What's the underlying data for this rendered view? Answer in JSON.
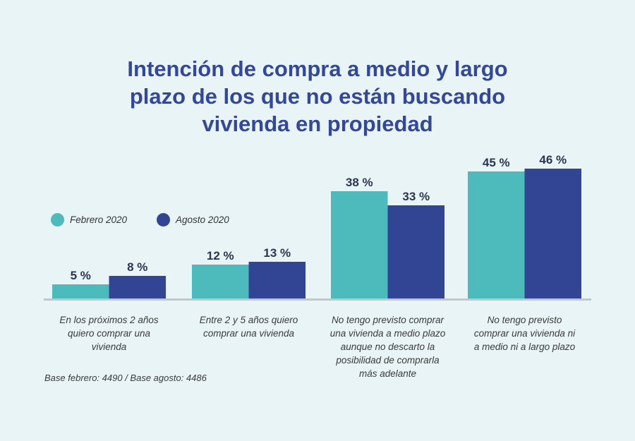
{
  "chart_data": {
    "type": "bar",
    "title": [
      "Intención de compra a medio y largo",
      "plazo de los que no están buscando",
      "vivienda en propiedad"
    ],
    "categories": [
      [
        "En los próximos 2 años",
        "quiero comprar una",
        "vivienda"
      ],
      [
        "Entre 2 y 5 años quiero",
        "comprar una vivienda"
      ],
      [
        "No tengo previsto comprar",
        "una vivienda a medio plazo",
        "aunque no descarto la",
        "posibilidad de comprarla",
        "más adelante"
      ],
      [
        "No tengo previsto",
        "comprar una vivienda ni",
        "a medio ni a largo plazo"
      ]
    ],
    "series": [
      {
        "name": "Febrero 2020",
        "color": "#4dbbbc",
        "values": [
          5,
          12,
          38,
          45
        ],
        "labels": [
          "5 %",
          "12 %",
          "38 %",
          "45 %"
        ]
      },
      {
        "name": "Agosto 2020",
        "color": "#324494",
        "values": [
          8,
          13,
          33,
          46
        ],
        "labels": [
          "8 %",
          "13 %",
          "33 %",
          "46 %"
        ]
      }
    ],
    "unit": "%",
    "legend_position": "left",
    "grid": false,
    "ylim": [
      0,
      50
    ],
    "note": "Base febrero: 4490 / Base agosto: 4486"
  }
}
